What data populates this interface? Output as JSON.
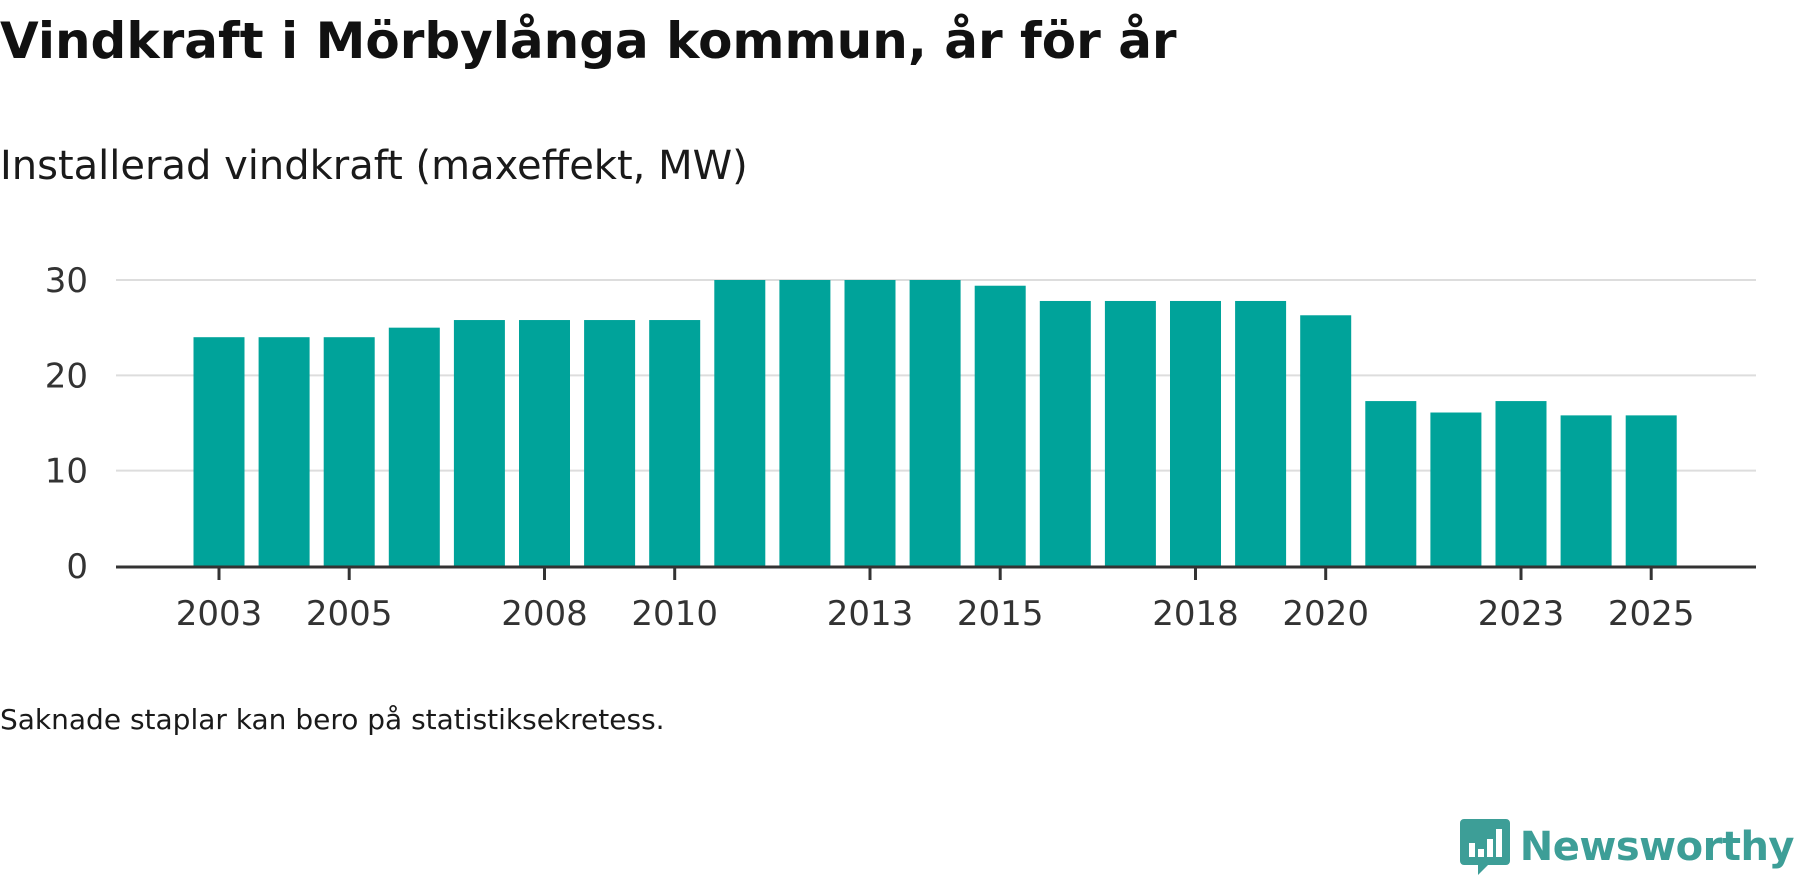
{
  "title": "Vindkraft i Mörbylånga kommun, år för år",
  "subtitle": "Installerad vindkraft (maxeffekt, MW)",
  "note": "Saknade staplar kan bero på statistiksekretess.",
  "brand": {
    "name": "Newsworthy",
    "color": "#3d9e97",
    "logo_icon": "newsworthy-bar-chart-icon"
  },
  "colors": {
    "bar": "#00a39a",
    "grid": "#dddddd",
    "axis": "#333333"
  },
  "chart_data": {
    "type": "bar",
    "title": "Installerad vindkraft (maxeffekt, MW)",
    "xlabel": "",
    "ylabel": "",
    "categories": [
      "2003",
      "2004",
      "2005",
      "2006",
      "2007",
      "2008",
      "2009",
      "2010",
      "2011",
      "2012",
      "2013",
      "2014",
      "2015",
      "2016",
      "2017",
      "2018",
      "2019",
      "2020",
      "2021",
      "2022",
      "2023",
      "2024",
      "2025"
    ],
    "values": [
      24.0,
      24.0,
      24.0,
      25.0,
      25.8,
      25.8,
      25.8,
      25.8,
      30.0,
      30.0,
      30.0,
      30.0,
      29.4,
      27.8,
      27.8,
      27.8,
      27.8,
      26.3,
      17.3,
      16.1,
      17.3,
      15.8,
      15.8
    ],
    "x_tick_labels": [
      "2003",
      "2005",
      "2008",
      "2010",
      "2013",
      "2015",
      "2018",
      "2020",
      "2023",
      "2025"
    ],
    "y_ticks": [
      0,
      10,
      20,
      30
    ],
    "ylim": [
      0,
      30
    ],
    "grid": true,
    "legend": "none"
  }
}
